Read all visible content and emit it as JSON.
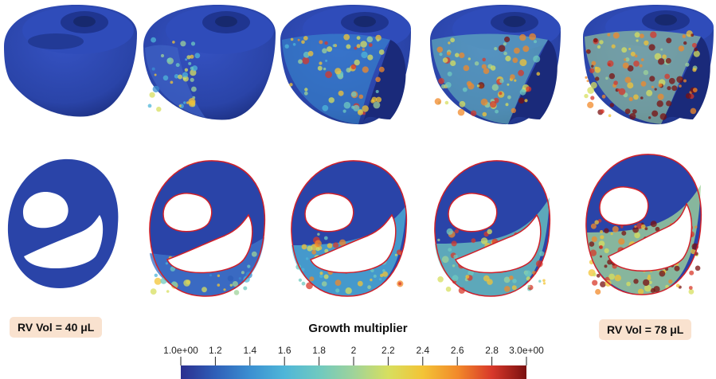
{
  "left_label": "RV Vol = 40 μL",
  "right_label": "RV Vol = 78 μL",
  "colorbar": {
    "title": "Growth multiplier",
    "ticks": [
      "1.0e+00",
      "1.2",
      "1.4",
      "1.6",
      "1.8",
      "2",
      "2.2",
      "2.4",
      "2.6",
      "2.8",
      "3.0e+00"
    ],
    "tick_values": [
      1.0,
      1.2,
      1.4,
      1.6,
      1.8,
      2.0,
      2.2,
      2.4,
      2.6,
      2.8,
      3.0
    ],
    "range": [
      1.0,
      3.0
    ],
    "colormap": [
      "#2c2f8f",
      "#2f5fb8",
      "#3b8fd1",
      "#4fb6d8",
      "#6fc9c0",
      "#9fd39a",
      "#d7df5f",
      "#f3c436",
      "#f28a2a",
      "#d8382a",
      "#7a1010"
    ]
  },
  "colors": {
    "base_blue": "#2a44a8",
    "dark_blue": "#141f5c",
    "contour_red": "#d0202a",
    "badge_bg": "#f9e2cf"
  }
}
